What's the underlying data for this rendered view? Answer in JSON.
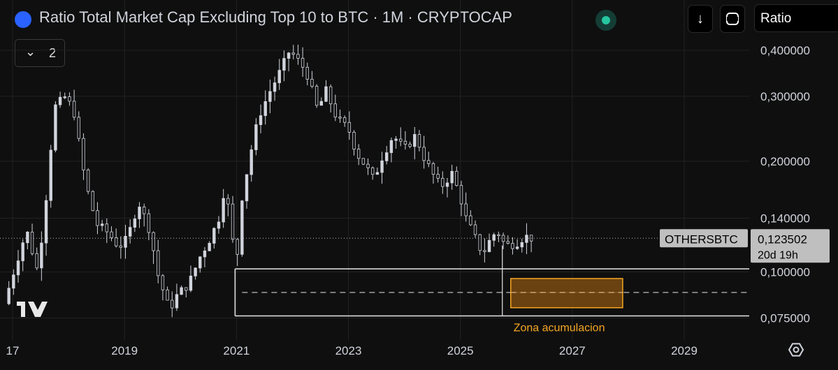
{
  "header": {
    "title": "Ratio Total Market Cap Excluding Top 10 to BTC · 1M · CRYPTOCAP",
    "download_icon": "arrow-down-icon",
    "fullscreen_icon": "fullscreen-icon",
    "scale_select": "Ratio"
  },
  "indicators": {
    "collapse_count": "2"
  },
  "chart_data": {
    "type": "candlestick",
    "symbol": "OTHERSBTC",
    "scale": "log",
    "timeframe": "1M",
    "ylim": [
      0.068,
      0.46
    ],
    "y_ticks": [
      "0,400000",
      "0,300000",
      "0,200000",
      "0,140000",
      "0,100000",
      "0,075000"
    ],
    "y_tick_values": [
      0.4,
      0.3,
      0.2,
      0.14,
      0.1,
      0.075
    ],
    "x_ticks": [
      "17",
      "2019",
      "2021",
      "2023",
      "2025",
      "2027",
      "2029"
    ],
    "x_tick_values": [
      2017.0,
      2019.0,
      2021.0,
      2023.0,
      2025.0,
      2027.0,
      2029.0
    ],
    "last_price": "0,123502",
    "last_price_value": 0.1235,
    "countdown": "20d 19h",
    "annotation": "Zona acumulacion",
    "levels": [
      0.102,
      0.076
    ],
    "dashed_level": 0.088,
    "zone": {
      "t0": 2025.9,
      "t1": 2027.9,
      "y_low": 0.08,
      "y_high": 0.096
    },
    "colors": {
      "candle": "#d1d4dc",
      "zone_fill": "#7a4a10",
      "zone_border": "#f5a623",
      "annotation": "#f5a623"
    },
    "anchors": [
      [
        2016.85,
        0.082
      ],
      [
        2017.1,
        0.11
      ],
      [
        2017.25,
        0.13
      ],
      [
        2017.45,
        0.1
      ],
      [
        2017.6,
        0.16
      ],
      [
        2017.75,
        0.28
      ],
      [
        2017.95,
        0.3
      ],
      [
        2018.1,
        0.27
      ],
      [
        2018.3,
        0.175
      ],
      [
        2018.5,
        0.135
      ],
      [
        2018.7,
        0.128
      ],
      [
        2018.9,
        0.117
      ],
      [
        2019.05,
        0.123
      ],
      [
        2019.25,
        0.155
      ],
      [
        2019.45,
        0.13
      ],
      [
        2019.6,
        0.098
      ],
      [
        2019.8,
        0.079
      ],
      [
        2019.95,
        0.087
      ],
      [
        2020.15,
        0.093
      ],
      [
        2020.35,
        0.11
      ],
      [
        2020.55,
        0.125
      ],
      [
        2020.7,
        0.142
      ],
      [
        2020.8,
        0.175
      ],
      [
        2020.9,
        0.13
      ],
      [
        2021.0,
        0.105
      ],
      [
        2021.1,
        0.16
      ],
      [
        2021.25,
        0.21
      ],
      [
        2021.4,
        0.265
      ],
      [
        2021.6,
        0.31
      ],
      [
        2021.8,
        0.355
      ],
      [
        2021.95,
        0.4
      ],
      [
        2022.1,
        0.375
      ],
      [
        2022.25,
        0.35
      ],
      [
        2022.45,
        0.275
      ],
      [
        2022.6,
        0.31
      ],
      [
        2022.8,
        0.26
      ],
      [
        2023.0,
        0.245
      ],
      [
        2023.15,
        0.21
      ],
      [
        2023.3,
        0.195
      ],
      [
        2023.45,
        0.178
      ],
      [
        2023.6,
        0.205
      ],
      [
        2023.8,
        0.235
      ],
      [
        2024.0,
        0.215
      ],
      [
        2024.2,
        0.235
      ],
      [
        2024.35,
        0.205
      ],
      [
        2024.5,
        0.185
      ],
      [
        2024.65,
        0.17
      ],
      [
        2024.85,
        0.185
      ],
      [
        2025.0,
        0.16
      ],
      [
        2025.1,
        0.14
      ],
      [
        2025.25,
        0.125
      ],
      [
        2025.4,
        0.112
      ],
      [
        2025.5,
        0.12
      ],
      [
        2025.65,
        0.13
      ],
      [
        2025.8,
        0.118
      ],
      [
        2026.0,
        0.12
      ],
      [
        2026.15,
        0.125
      ],
      [
        2026.3,
        0.1235
      ]
    ]
  },
  "footer": {
    "settings_icon": "settings-gear-icon",
    "logo": "tradingview-logo"
  }
}
